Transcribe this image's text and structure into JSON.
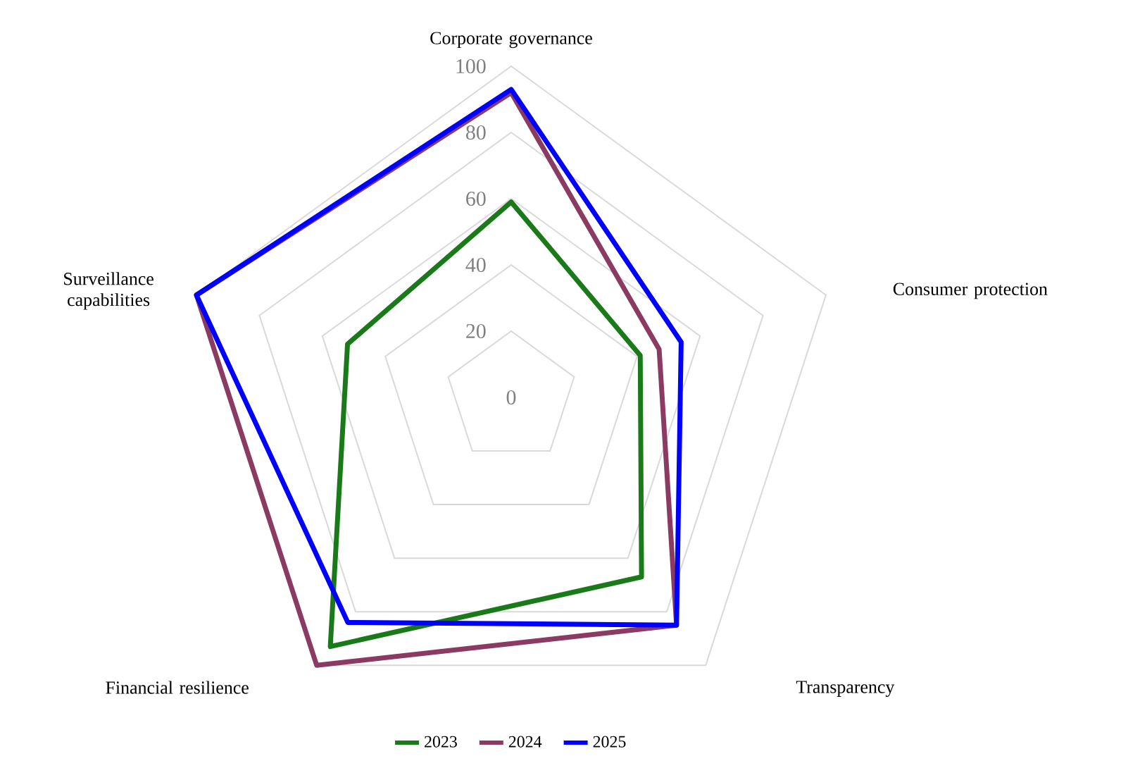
{
  "chart_data": {
    "type": "radar",
    "categories": [
      "Corporate governance",
      "Consumer protection",
      "Transparency",
      "Financial resilience",
      "Surveillance capabilities"
    ],
    "series": [
      {
        "name": "2023",
        "color": "#1a7a1a",
        "values": [
          59,
          41,
          67,
          93,
          52
        ]
      },
      {
        "name": "2024",
        "color": "#8b3a62",
        "values": [
          92,
          47,
          85,
          100,
          100
        ]
      },
      {
        "name": "2025",
        "color": "#0000ff",
        "values": [
          93,
          54,
          85,
          84,
          100
        ]
      }
    ],
    "ylim": [
      0,
      100
    ],
    "yticks": [
      0,
      20,
      40,
      60,
      80,
      100
    ],
    "grid": true,
    "legend": "bottom",
    "marker": "none",
    "line_style": "solid"
  }
}
